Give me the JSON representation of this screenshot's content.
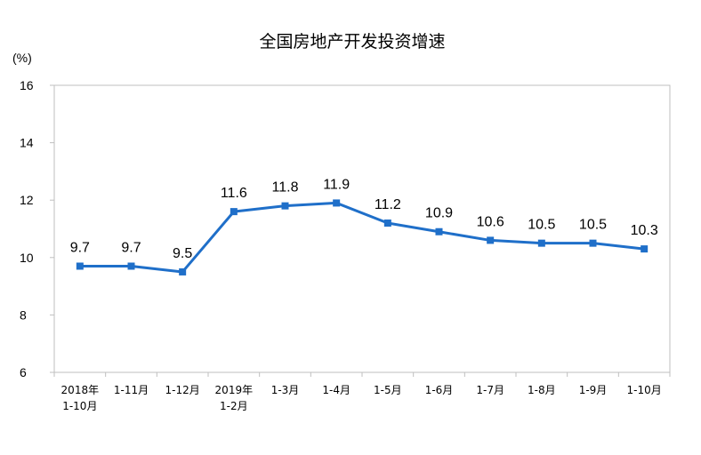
{
  "chart_data": {
    "type": "line",
    "title": "全国房地产开发投资增速",
    "unit_label": "(%)",
    "xlabel": "",
    "ylabel": "",
    "ylim": [
      6,
      16
    ],
    "yticks": [
      "6",
      "8",
      "10",
      "12",
      "14",
      "16"
    ],
    "grid": false,
    "legend": "none",
    "categories": [
      [
        "2018年",
        "1-10月"
      ],
      [
        "1-11月"
      ],
      [
        "1-12月"
      ],
      [
        "2019年",
        "1-2月"
      ],
      [
        "1-3月"
      ],
      [
        "1-4月"
      ],
      [
        "1-5月"
      ],
      [
        "1-6月"
      ],
      [
        "1-7月"
      ],
      [
        "1-8月"
      ],
      [
        "1-9月"
      ],
      [
        "1-10月"
      ]
    ],
    "series": [
      {
        "values": [
          9.7,
          9.7,
          9.5,
          11.6,
          11.8,
          11.9,
          11.2,
          10.9,
          10.6,
          10.5,
          10.5,
          10.3
        ],
        "labels": [
          "9.7",
          "9.7",
          "9.5",
          "11.6",
          "11.8",
          "11.9",
          "11.2",
          "10.9",
          "10.6",
          "10.5",
          "10.5",
          "10.3"
        ],
        "color": "#1f6fc9"
      }
    ],
    "colors": {
      "axis": "#bfbfbf",
      "text": "#000000"
    }
  }
}
